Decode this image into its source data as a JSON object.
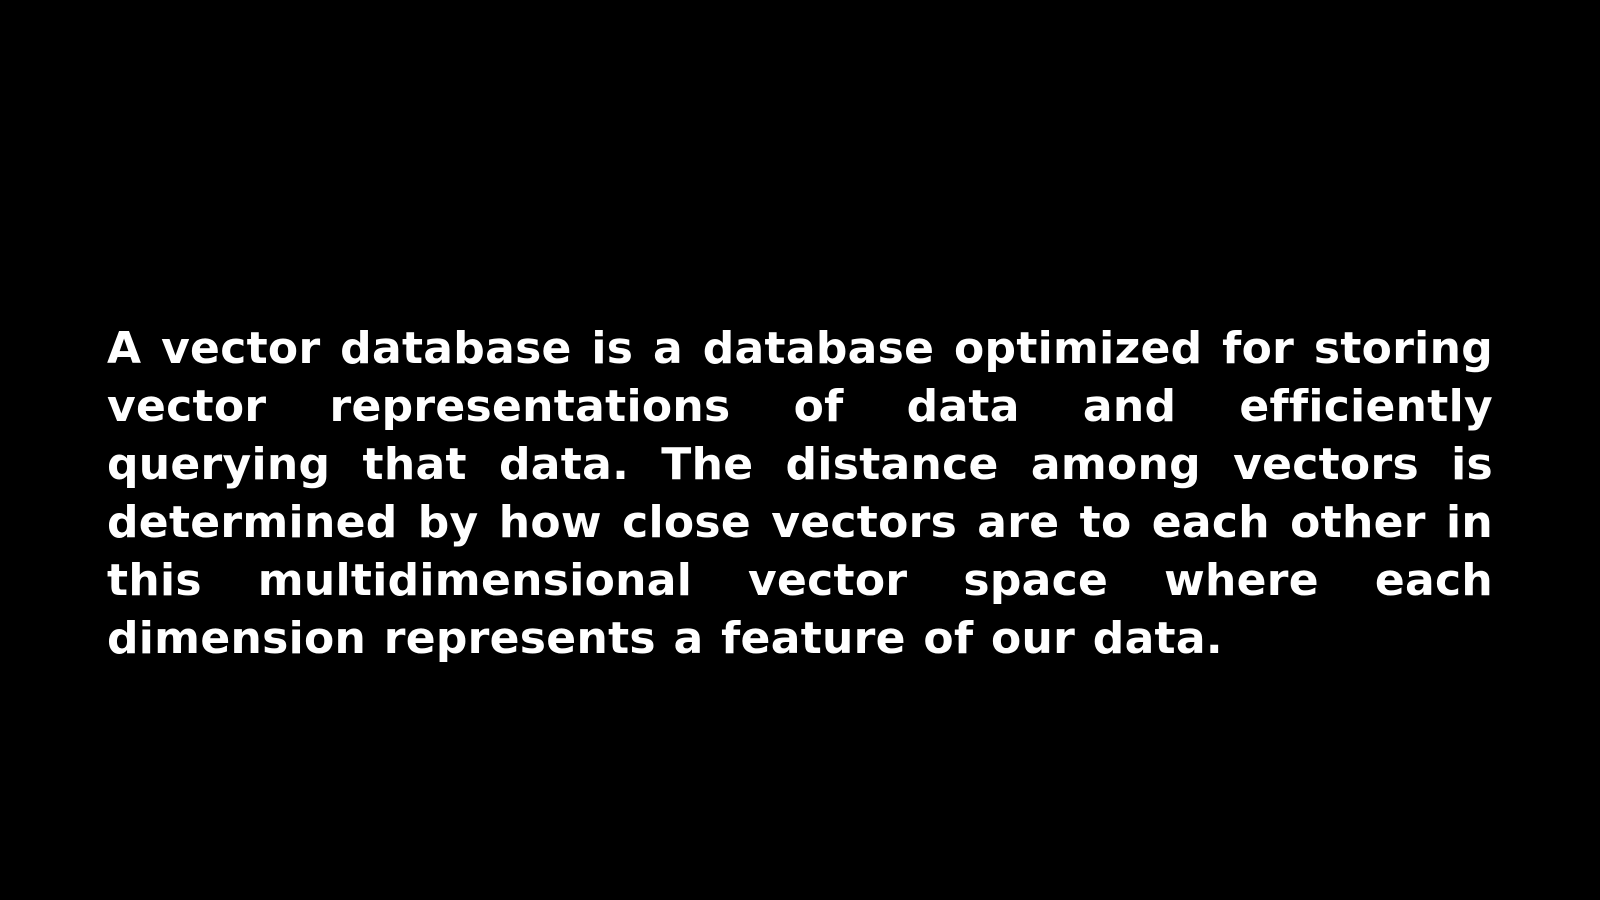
{
  "slide": {
    "background_color": "#000000",
    "text_color": "#ffffff",
    "paragraph": "A vector database is a database optimized for storing vector representations of data and efficiently querying that data. The distance among vectors is determined by how close vectors are to each other in this multidimensional vector space where each dimension represents a feature of our data."
  }
}
